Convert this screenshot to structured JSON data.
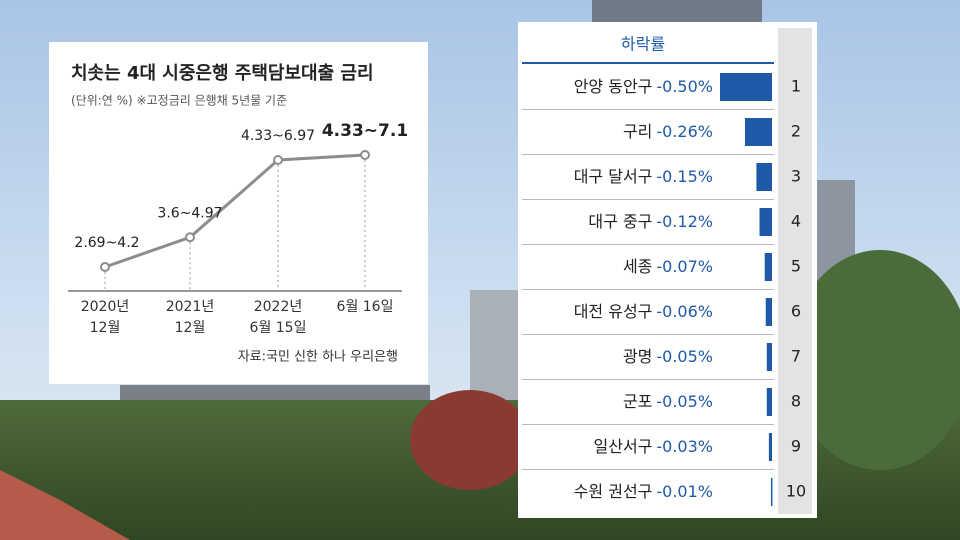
{
  "chart_data": [
    {
      "type": "line",
      "title": "치솟는 4대 시중은행 주택담보대출 금리",
      "subtitle": "(단위:연 %) ※고정금리 은행채 5년물 기준",
      "source": "자료:국민 신한 하나 우리은행",
      "categories": [
        [
          "2020년",
          "12월"
        ],
        [
          "2021년",
          "12월"
        ],
        [
          "2022년",
          "6월 15일"
        ],
        [
          "6월 16일"
        ]
      ],
      "series": [
        {
          "color": "#8c8c8c",
          "values": [
            4.2,
            4.97,
            6.97,
            7.1
          ],
          "value_labels": [
            "2.69~4.2",
            "3.6~4.97",
            "4.33~6.97",
            "4.33~7.1"
          ]
        }
      ]
    },
    {
      "type": "hbar",
      "header": "하락률",
      "color": "#1f5aa8",
      "categories": [
        "안양 동안구",
        "구리",
        "대구 달서구",
        "대구 중구",
        "세종",
        "대전 유성구",
        "광명",
        "군포",
        "일산서구",
        "수원 권선구"
      ],
      "values": [
        -0.5,
        -0.26,
        -0.15,
        -0.12,
        -0.07,
        -0.06,
        -0.05,
        -0.05,
        -0.03,
        -0.01
      ],
      "value_labels": [
        "-0.50%",
        "-0.26%",
        "-0.15%",
        "-0.12%",
        "-0.07%",
        "-0.06%",
        "-0.05%",
        "-0.05%",
        "-0.03%",
        "-0.01%"
      ],
      "ranks": [
        1,
        2,
        3,
        4,
        5,
        6,
        7,
        8,
        9,
        10
      ]
    }
  ]
}
